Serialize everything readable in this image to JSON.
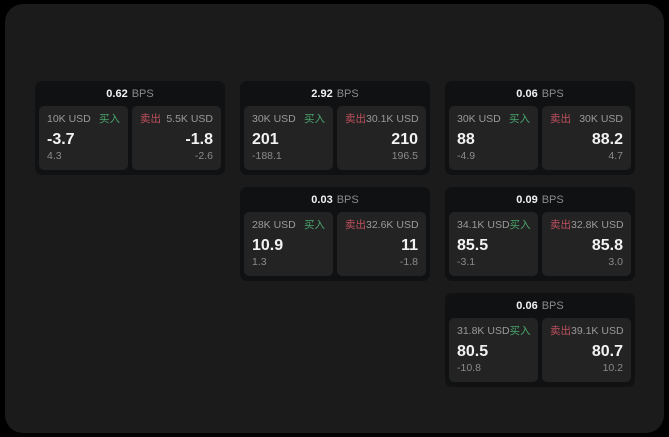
{
  "colors": {
    "buy_green": "#4aa56d",
    "sell_red": "#c0505f",
    "background": "#1b1b1b",
    "card": "#101112",
    "panel": "#232323"
  },
  "labels": {
    "bps": "BPS",
    "buy": "买入",
    "sell": "卖出"
  },
  "cards": [
    {
      "bps": "0.62",
      "buy": {
        "size": "10K USD",
        "value": "-3.7",
        "sub": "4.3"
      },
      "sell": {
        "size": "5.5K USD",
        "value": "-1.8",
        "sub": "-2.6"
      }
    },
    {
      "bps": "2.92",
      "buy": {
        "size": "30K USD",
        "value": "201",
        "sub": "-188.1"
      },
      "sell": {
        "size": "30.1K USD",
        "value": "210",
        "sub": "196.5"
      }
    },
    {
      "bps": "0.06",
      "buy": {
        "size": "30K USD",
        "value": "88",
        "sub": "-4.9"
      },
      "sell": {
        "size": "30K USD",
        "value": "88.2",
        "sub": "4.7"
      }
    },
    {
      "bps": "0.03",
      "buy": {
        "size": "28K USD",
        "value": "10.9",
        "sub": "1.3"
      },
      "sell": {
        "size": "32.6K USD",
        "value": "11",
        "sub": "-1.8"
      }
    },
    {
      "bps": "0.09",
      "buy": {
        "size": "34.1K USD",
        "value": "85.5",
        "sub": "-3.1"
      },
      "sell": {
        "size": "32.8K USD",
        "value": "85.8",
        "sub": "3.0"
      }
    },
    {
      "bps": "0.06",
      "buy": {
        "size": "31.8K USD",
        "value": "80.5",
        "sub": "-10.8"
      },
      "sell": {
        "size": "39.1K USD",
        "value": "80.7",
        "sub": "10.2"
      }
    }
  ]
}
